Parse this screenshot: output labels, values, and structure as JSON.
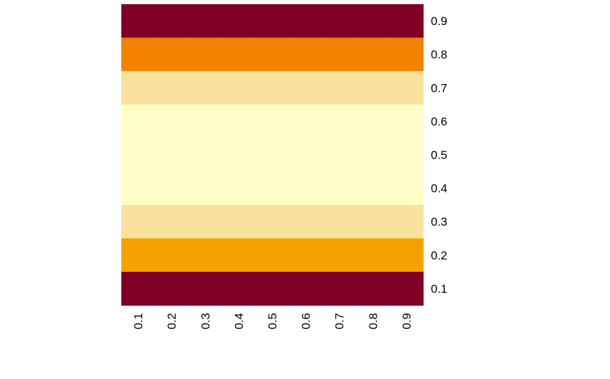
{
  "chart_data": {
    "type": "heatmap",
    "title": "",
    "xlabel": "",
    "ylabel": "",
    "x_categories": [
      "0.1",
      "0.2",
      "0.3",
      "0.4",
      "0.5",
      "0.6",
      "0.7",
      "0.8",
      "0.9"
    ],
    "y_categories": [
      "0.9",
      "0.8",
      "0.7",
      "0.6",
      "0.5",
      "0.4",
      "0.3",
      "0.2",
      "0.1"
    ],
    "row_colors": [
      "#7f0024",
      "#f28200",
      "#fae29e",
      "#fefec9",
      "#fefec9",
      "#fefec9",
      "#fae29e",
      "#f5a100",
      "#7f0024"
    ],
    "y_axis_position": "right",
    "x_tick_rotation": "vertical",
    "legend": "none",
    "grid": false
  }
}
